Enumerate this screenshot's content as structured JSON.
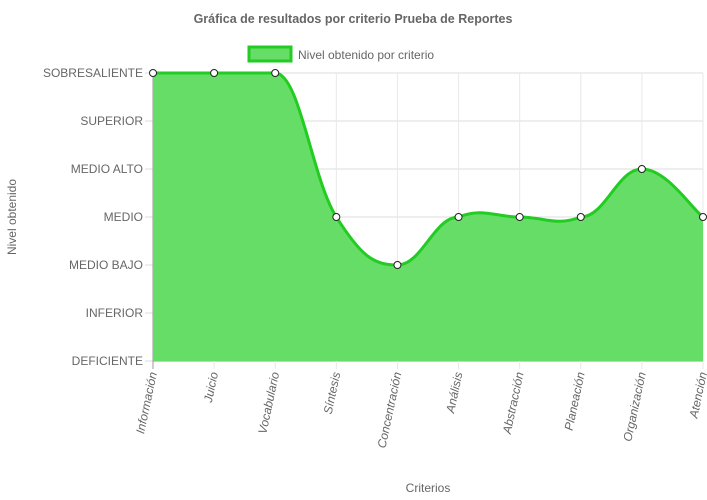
{
  "chart_data": {
    "type": "area",
    "title": "Gráfica de resultados por criterio Prueba de Reportes",
    "xlabel": "Criterios",
    "ylabel": "Nivel obtenido",
    "categories": [
      "Información",
      "Juicio",
      "Vocabulario",
      "Síntesis",
      "Concentración",
      "Análisis",
      "Abstracción",
      "Planeación",
      "Organización",
      "Atención"
    ],
    "y_levels": [
      "DEFICIENTE",
      "INFERIOR",
      "MEDIO BAJO",
      "MEDIO",
      "MEDIO ALTO",
      "SUPERIOR",
      "SOBRESALIENTE"
    ],
    "ylim": [
      0,
      6
    ],
    "series": [
      {
        "name": "Nivel obtenido por criterio",
        "values": [
          6,
          6,
          6,
          3,
          2,
          3,
          3,
          3,
          4,
          3
        ]
      }
    ],
    "legend_position": "top-center",
    "grid": true,
    "colors": {
      "fill": "#66dd66",
      "line": "#22cc22",
      "grid": "#e6e6e6",
      "axis": "#999999",
      "text": "#666666"
    }
  }
}
